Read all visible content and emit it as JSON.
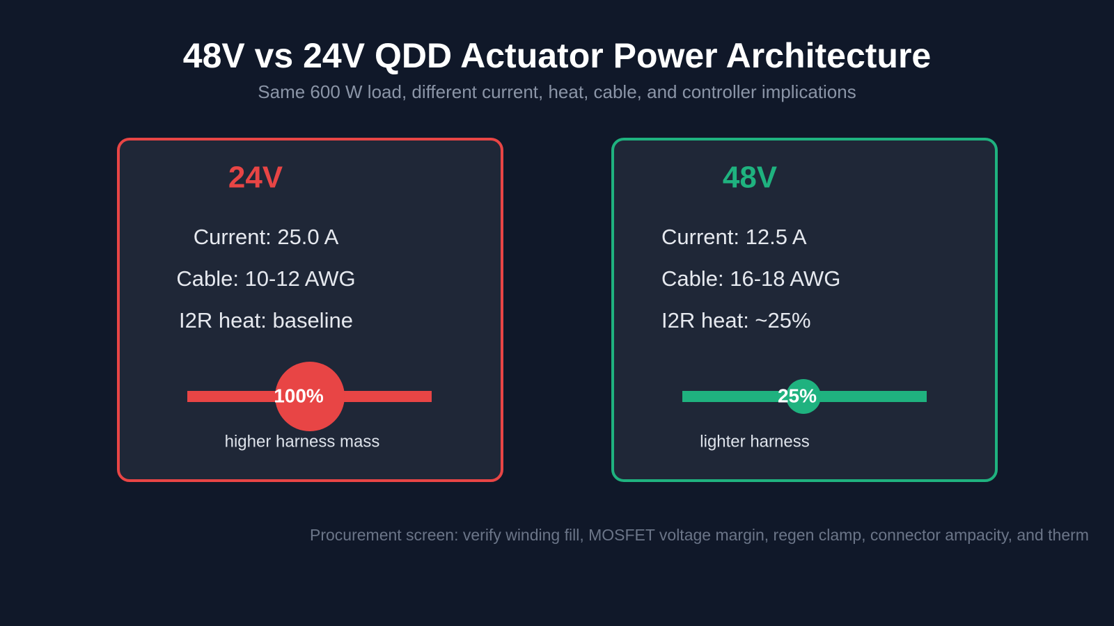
{
  "title": "48V vs 24V QDD Actuator Power Architecture",
  "subtitle": "Same 600 W load, different current, heat, cable, and controller implications",
  "cards": [
    {
      "voltage": "24V",
      "color": "#e84545",
      "lines": [
        "Current: 25.0 A",
        "Cable: 10-12 AWG",
        "I2R heat: baseline"
      ],
      "heat": {
        "value": 100,
        "label": "100%"
      },
      "caption": "higher harness mass"
    },
    {
      "voltage": "48V",
      "color": "#1fb27f",
      "lines": [
        "Current: 12.5 A",
        "Cable: 16-18 AWG",
        "I2R heat: ~25%"
      ],
      "heat": {
        "value": 25,
        "label": "25%"
      },
      "caption": "lighter harness"
    }
  ],
  "footer": "Procurement screen: verify winding fill, MOSFET voltage margin, regen clamp, connector ampacity, and therm"
}
